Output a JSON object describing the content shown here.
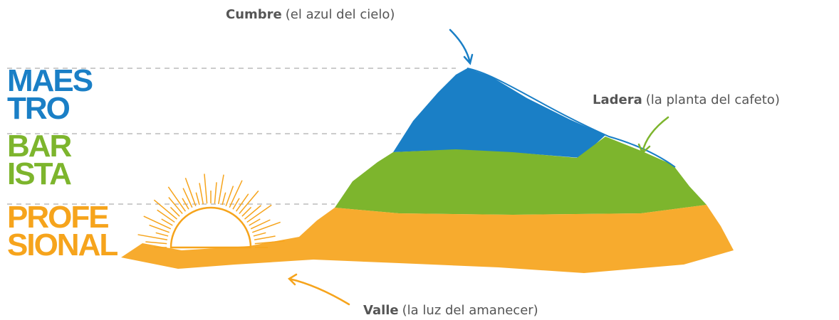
{
  "levels": [
    {
      "lines": [
        "MAES",
        "TRO"
      ],
      "color": "#1a7fc6"
    },
    {
      "lines": [
        "BAR",
        "ISTA"
      ],
      "color": "#7db52d"
    },
    {
      "lines": [
        "PROFE",
        "SIONAL"
      ],
      "color": "#f6a41c"
    }
  ],
  "annotations": [
    {
      "term": "Cumbre",
      "description": "(el azul del cielo)"
    },
    {
      "term": "Ladera",
      "description": "(la planta del cafeto)"
    },
    {
      "term": "Valle",
      "description": "(la luz del amanecer)"
    }
  ]
}
